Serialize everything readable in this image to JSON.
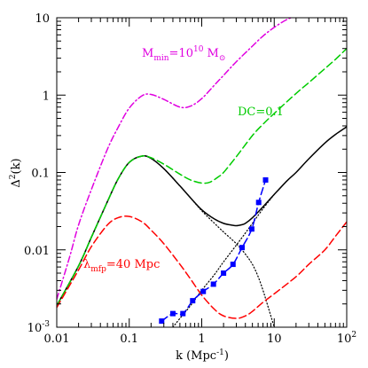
{
  "chart_data": {
    "type": "line",
    "x_scale": "log",
    "y_scale": "log",
    "xlim": [
      0.01,
      100
    ],
    "ylim": [
      0.001,
      10
    ],
    "xlabel": "k (Mpc",
    "xlabel_sup": "-1",
    "xlabel_close": ")",
    "ylabel": "Δ",
    "ylabel_sup": "2",
    "ylabel_tail": "(k)",
    "grid": false,
    "x_ticks": [
      {
        "value": 0.01,
        "label": "0.01"
      },
      {
        "value": 0.1,
        "label": "0.1"
      },
      {
        "value": 1,
        "label": "1"
      },
      {
        "value": 10,
        "label": "10"
      },
      {
        "value": 100,
        "label": "10",
        "sup": "2"
      }
    ],
    "y_ticks": [
      {
        "value": 0.001,
        "label": "10",
        "sup": "-3"
      },
      {
        "value": 0.01,
        "label": "0.01"
      },
      {
        "value": 0.1,
        "label": "0.1"
      },
      {
        "value": 1,
        "label": "1"
      },
      {
        "value": 10,
        "label": "10"
      }
    ],
    "annotations": {
      "mmin": {
        "text": "M",
        "sub": "min",
        "rest": "=10",
        "sup": "10",
        "unit": " M",
        "unit_sub": "⊙",
        "color": "#e000e0"
      },
      "dc": {
        "text": "DC=0.1",
        "color": "#00cc00"
      },
      "lmfp": {
        "text": "λ",
        "sub": "mfp",
        "rest": "=40 Mpc",
        "color": "#ff0000"
      }
    },
    "series": [
      {
        "style": "solid",
        "color": "#000000",
        "x": [
          0.01,
          0.02,
          0.03,
          0.05,
          0.07,
          0.1,
          0.15,
          0.2,
          0.3,
          0.5,
          0.7,
          1,
          1.5,
          2,
          2.5,
          3,
          3.5,
          4,
          5,
          7,
          10,
          15,
          20,
          30,
          50,
          70,
          100
        ],
        "y": [
          0.0019,
          0.0062,
          0.0145,
          0.042,
          0.082,
          0.135,
          0.163,
          0.152,
          0.112,
          0.067,
          0.047,
          0.033,
          0.025,
          0.022,
          0.021,
          0.0205,
          0.021,
          0.022,
          0.026,
          0.036,
          0.052,
          0.078,
          0.1,
          0.15,
          0.24,
          0.31,
          0.39
        ]
      },
      {
        "style": "dotted",
        "color": "#000000",
        "x": [
          0.01,
          0.02,
          0.03,
          0.05,
          0.07,
          0.1,
          0.15,
          0.2,
          0.3,
          0.5,
          0.7,
          1,
          1.5,
          2,
          3,
          4,
          5,
          6,
          7,
          8,
          10
        ],
        "y": [
          0.0019,
          0.0062,
          0.0145,
          0.042,
          0.082,
          0.135,
          0.163,
          0.152,
          0.112,
          0.067,
          0.047,
          0.032,
          0.022,
          0.017,
          0.012,
          0.0088,
          0.0065,
          0.0045,
          0.003,
          0.002,
          0.001
        ]
      },
      {
        "style": "dotted",
        "color": "#000000",
        "x": [
          0.4,
          0.5,
          0.7,
          1,
          1.5,
          2,
          3,
          4,
          5,
          7,
          10
        ],
        "y": [
          0.001,
          0.0013,
          0.0019,
          0.003,
          0.0048,
          0.007,
          0.0115,
          0.0165,
          0.022,
          0.034,
          0.052
        ]
      },
      {
        "style": "dashdot",
        "color": "#e000e0",
        "x": [
          0.01,
          0.015,
          0.02,
          0.03,
          0.05,
          0.07,
          0.1,
          0.15,
          0.2,
          0.3,
          0.5,
          0.7,
          1,
          1.5,
          2,
          3,
          5,
          7,
          10,
          15,
          20
        ],
        "y": [
          0.0023,
          0.008,
          0.021,
          0.06,
          0.2,
          0.38,
          0.68,
          0.98,
          1.02,
          0.88,
          0.7,
          0.72,
          0.9,
          1.35,
          1.8,
          2.7,
          4.3,
          5.8,
          7.5,
          9.5,
          10.5
        ]
      },
      {
        "style": "dashed",
        "color": "#00cc00",
        "x": [
          0.01,
          0.02,
          0.03,
          0.05,
          0.07,
          0.1,
          0.15,
          0.2,
          0.3,
          0.5,
          0.7,
          1,
          1.3,
          1.7,
          2,
          3,
          5,
          7,
          10,
          20,
          30,
          50,
          70,
          100
        ],
        "y": [
          0.0019,
          0.0062,
          0.0145,
          0.042,
          0.082,
          0.135,
          0.163,
          0.155,
          0.128,
          0.095,
          0.08,
          0.073,
          0.075,
          0.088,
          0.1,
          0.16,
          0.3,
          0.42,
          0.58,
          1.05,
          1.45,
          2.2,
          2.9,
          4.0
        ]
      },
      {
        "style": "dashed",
        "color": "#ff0000",
        "x": [
          0.01,
          0.02,
          0.03,
          0.05,
          0.07,
          0.1,
          0.15,
          0.2,
          0.3,
          0.5,
          0.7,
          1,
          1.5,
          2,
          3,
          4,
          5,
          7,
          10,
          20,
          30,
          50,
          70,
          100
        ],
        "y": [
          0.0018,
          0.0055,
          0.011,
          0.021,
          0.026,
          0.027,
          0.023,
          0.018,
          0.012,
          0.0065,
          0.0042,
          0.0026,
          0.0017,
          0.0014,
          0.0013,
          0.0014,
          0.0016,
          0.0021,
          0.0027,
          0.0045,
          0.0065,
          0.01,
          0.015,
          0.023
        ]
      },
      {
        "style": "dashed-markers",
        "color": "#0000ff",
        "x": [
          0.28,
          0.4,
          0.55,
          0.75,
          1.05,
          1.45,
          2.0,
          2.7,
          3.6,
          4.9,
          6.1,
          7.6
        ],
        "y": [
          0.0012,
          0.0015,
          0.0015,
          0.0022,
          0.0029,
          0.0036,
          0.005,
          0.0065,
          0.0107,
          0.0186,
          0.041,
          0.08
        ]
      }
    ]
  }
}
